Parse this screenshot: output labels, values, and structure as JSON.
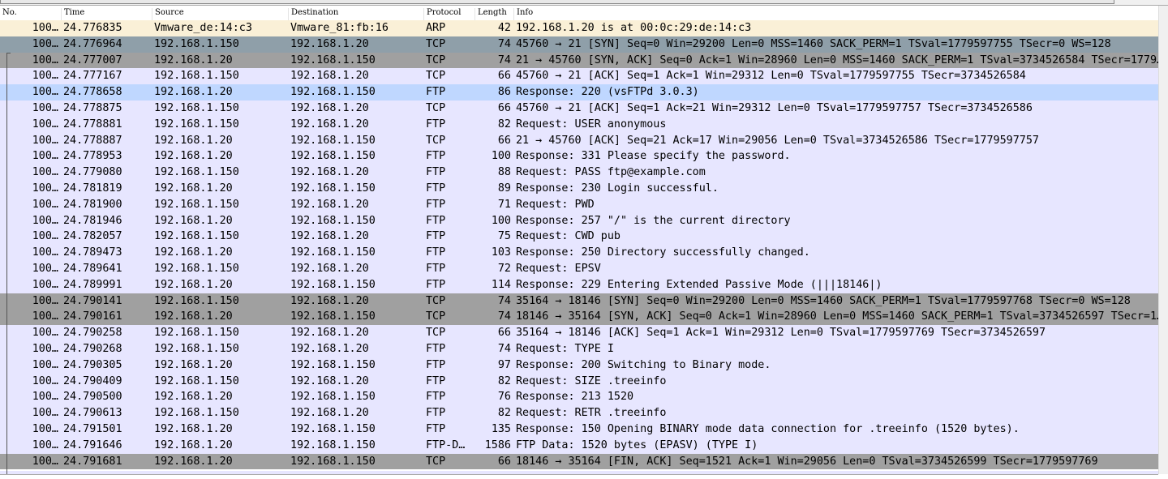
{
  "columns": {
    "no": "No.",
    "time": "Time",
    "source": "Source",
    "destination": "Destination",
    "protocol": "Protocol",
    "length": "Length",
    "info": "Info"
  },
  "colors": {
    "arp": "#faf0d7",
    "syn": "#8f9fa9",
    "gray": "#a0a0a0",
    "normal": "#e7e6ff",
    "selected": "#bfd7ff"
  },
  "packets": [
    {
      "no": "100…",
      "time": "24.776835",
      "src": "Vmware_de:14:c3",
      "dst": "Vmware_81:fb:16",
      "proto": "ARP",
      "len": "42",
      "info": "192.168.1.20 is at 00:0c:29:de:14:c3",
      "color": "arp"
    },
    {
      "no": "100…",
      "time": "24.776964",
      "src": "192.168.1.150",
      "dst": "192.168.1.20",
      "proto": "TCP",
      "len": "74",
      "info": "45760 → 21 [SYN] Seq=0 Win=29200 Len=0 MSS=1460 SACK_PERM=1 TSval=1779597755 TSecr=0 WS=128",
      "color": "syn"
    },
    {
      "no": "100…",
      "time": "24.777007",
      "src": "192.168.1.20",
      "dst": "192.168.1.150",
      "proto": "TCP",
      "len": "74",
      "info": "21 → 45760 [SYN, ACK] Seq=0 Ack=1 Win=28960 Len=0 MSS=1460 SACK_PERM=1 TSval=3734526584 TSecr=1779…",
      "color": "gray"
    },
    {
      "no": "100…",
      "time": "24.777167",
      "src": "192.168.1.150",
      "dst": "192.168.1.20",
      "proto": "TCP",
      "len": "66",
      "info": "45760 → 21 [ACK] Seq=1 Ack=1 Win=29312 Len=0 TSval=1779597755 TSecr=3734526584",
      "color": "normal"
    },
    {
      "no": "100…",
      "time": "24.778658",
      "src": "192.168.1.20",
      "dst": "192.168.1.150",
      "proto": "FTP",
      "len": "86",
      "info": "Response: 220 (vsFTPd 3.0.3)",
      "color": "selected"
    },
    {
      "no": "100…",
      "time": "24.778875",
      "src": "192.168.1.150",
      "dst": "192.168.1.20",
      "proto": "TCP",
      "len": "66",
      "info": "45760 → 21 [ACK] Seq=1 Ack=21 Win=29312 Len=0 TSval=1779597757 TSecr=3734526586",
      "color": "normal"
    },
    {
      "no": "100…",
      "time": "24.778881",
      "src": "192.168.1.150",
      "dst": "192.168.1.20",
      "proto": "FTP",
      "len": "82",
      "info": "Request: USER anonymous",
      "color": "normal"
    },
    {
      "no": "100…",
      "time": "24.778887",
      "src": "192.168.1.20",
      "dst": "192.168.1.150",
      "proto": "TCP",
      "len": "66",
      "info": "21 → 45760 [ACK] Seq=21 Ack=17 Win=29056 Len=0 TSval=3734526586 TSecr=1779597757",
      "color": "normal"
    },
    {
      "no": "100…",
      "time": "24.778953",
      "src": "192.168.1.20",
      "dst": "192.168.1.150",
      "proto": "FTP",
      "len": "100",
      "info": "Response: 331 Please specify the password.",
      "color": "normal"
    },
    {
      "no": "100…",
      "time": "24.779080",
      "src": "192.168.1.150",
      "dst": "192.168.1.20",
      "proto": "FTP",
      "len": "88",
      "info": "Request: PASS ftp@example.com",
      "color": "normal"
    },
    {
      "no": "100…",
      "time": "24.781819",
      "src": "192.168.1.20",
      "dst": "192.168.1.150",
      "proto": "FTP",
      "len": "89",
      "info": "Response: 230 Login successful.",
      "color": "normal"
    },
    {
      "no": "100…",
      "time": "24.781900",
      "src": "192.168.1.150",
      "dst": "192.168.1.20",
      "proto": "FTP",
      "len": "71",
      "info": "Request: PWD",
      "color": "normal"
    },
    {
      "no": "100…",
      "time": "24.781946",
      "src": "192.168.1.20",
      "dst": "192.168.1.150",
      "proto": "FTP",
      "len": "100",
      "info": "Response: 257 \"/\" is the current directory",
      "color": "normal"
    },
    {
      "no": "100…",
      "time": "24.782057",
      "src": "192.168.1.150",
      "dst": "192.168.1.20",
      "proto": "FTP",
      "len": "75",
      "info": "Request: CWD pub",
      "color": "normal"
    },
    {
      "no": "100…",
      "time": "24.789473",
      "src": "192.168.1.20",
      "dst": "192.168.1.150",
      "proto": "FTP",
      "len": "103",
      "info": "Response: 250 Directory successfully changed.",
      "color": "normal"
    },
    {
      "no": "100…",
      "time": "24.789641",
      "src": "192.168.1.150",
      "dst": "192.168.1.20",
      "proto": "FTP",
      "len": "72",
      "info": "Request: EPSV",
      "color": "normal"
    },
    {
      "no": "100…",
      "time": "24.789991",
      "src": "192.168.1.20",
      "dst": "192.168.1.150",
      "proto": "FTP",
      "len": "114",
      "info": "Response: 229 Entering Extended Passive Mode (|||18146|)",
      "color": "normal"
    },
    {
      "no": "100…",
      "time": "24.790141",
      "src": "192.168.1.150",
      "dst": "192.168.1.20",
      "proto": "TCP",
      "len": "74",
      "info": "35164 → 18146 [SYN] Seq=0 Win=29200 Len=0 MSS=1460 SACK_PERM=1 TSval=1779597768 TSecr=0 WS=128",
      "color": "gray"
    },
    {
      "no": "100…",
      "time": "24.790161",
      "src": "192.168.1.20",
      "dst": "192.168.1.150",
      "proto": "TCP",
      "len": "74",
      "info": "18146 → 35164 [SYN, ACK] Seq=0 Ack=1 Win=28960 Len=0 MSS=1460 SACK_PERM=1 TSval=3734526597 TSecr=1…",
      "color": "gray"
    },
    {
      "no": "100…",
      "time": "24.790258",
      "src": "192.168.1.150",
      "dst": "192.168.1.20",
      "proto": "TCP",
      "len": "66",
      "info": "35164 → 18146 [ACK] Seq=1 Ack=1 Win=29312 Len=0 TSval=1779597769 TSecr=3734526597",
      "color": "normal"
    },
    {
      "no": "100…",
      "time": "24.790268",
      "src": "192.168.1.150",
      "dst": "192.168.1.20",
      "proto": "FTP",
      "len": "74",
      "info": "Request: TYPE I",
      "color": "normal"
    },
    {
      "no": "100…",
      "time": "24.790305",
      "src": "192.168.1.20",
      "dst": "192.168.1.150",
      "proto": "FTP",
      "len": "97",
      "info": "Response: 200 Switching to Binary mode.",
      "color": "normal"
    },
    {
      "no": "100…",
      "time": "24.790409",
      "src": "192.168.1.150",
      "dst": "192.168.1.20",
      "proto": "FTP",
      "len": "82",
      "info": "Request: SIZE .treeinfo",
      "color": "normal"
    },
    {
      "no": "100…",
      "time": "24.790500",
      "src": "192.168.1.20",
      "dst": "192.168.1.150",
      "proto": "FTP",
      "len": "76",
      "info": "Response: 213 1520",
      "color": "normal"
    },
    {
      "no": "100…",
      "time": "24.790613",
      "src": "192.168.1.150",
      "dst": "192.168.1.20",
      "proto": "FTP",
      "len": "82",
      "info": "Request: RETR .treeinfo",
      "color": "normal"
    },
    {
      "no": "100…",
      "time": "24.791501",
      "src": "192.168.1.20",
      "dst": "192.168.1.150",
      "proto": "FTP",
      "len": "135",
      "info": "Response: 150 Opening BINARY mode data connection for .treeinfo (1520 bytes).",
      "color": "normal"
    },
    {
      "no": "100…",
      "time": "24.791646",
      "src": "192.168.1.20",
      "dst": "192.168.1.150",
      "proto": "FTP-D…",
      "len": "1586",
      "info": "FTP Data: 1520 bytes (EPASV) (TYPE I)",
      "color": "normal"
    },
    {
      "no": "100…",
      "time": "24.791681",
      "src": "192.168.1.20",
      "dst": "192.168.1.150",
      "proto": "TCP",
      "len": "66",
      "info": "18146 → 35164 [FIN, ACK] Seq=1521 Ack=1 Win=29056 Len=0 TSval=3734526599 TSecr=1779597769",
      "color": "gray"
    }
  ]
}
